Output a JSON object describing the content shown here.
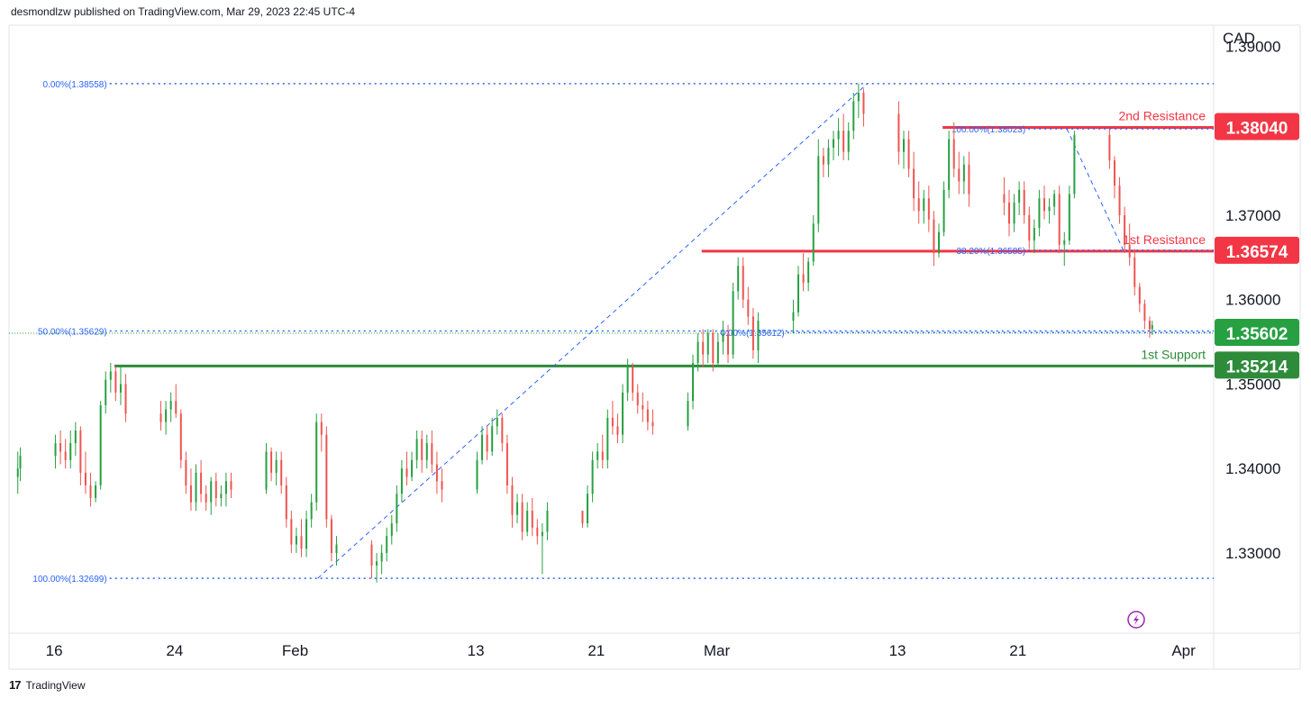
{
  "header": {
    "publisher": "desmondlzw published on TradingView.com, Mar 29, 2023 22:45 UTC-4"
  },
  "footer": {
    "brand": "TradingView"
  },
  "chart_data": {
    "type": "candlestick",
    "currency": "CAD",
    "ylim": [
      1.3205,
      1.3925
    ],
    "ytick_labels": [
      "1.39000",
      "1.37000",
      "1.36000",
      "1.35000",
      "1.34000",
      "1.33000"
    ],
    "ytick_values": [
      1.39,
      1.37,
      1.36,
      1.35,
      1.34,
      1.33
    ],
    "xtick_labels": [
      "16",
      "24",
      "Feb",
      "13",
      "21",
      "Mar",
      "13",
      "21",
      "Apr"
    ],
    "xtick_dates": [
      "2023-01-16",
      "2023-01-24",
      "2023-02-01",
      "2023-02-13",
      "2023-02-21",
      "2023-03-01",
      "2023-03-13",
      "2023-03-21",
      "2023-04-01"
    ],
    "colors": {
      "up": "#26a041",
      "down": "#ef5350",
      "resistance": "#f23645",
      "support": "#2e8b3a",
      "fib": "#2962ff"
    },
    "levels": [
      {
        "name": "2nd Resistance",
        "label": "2nd Resistance",
        "value": "1.38040",
        "price": 1.3804,
        "kind": "resistance",
        "start": "2023-03-16"
      },
      {
        "name": "1st Resistance",
        "label": "1st Resistance",
        "value": "1.36574",
        "price": 1.36574,
        "kind": "resistance",
        "start": "2023-02-28"
      },
      {
        "name": "current",
        "label": "",
        "value": "1.35602",
        "price": 1.35602,
        "kind": "current",
        "start": "2023-01-14"
      },
      {
        "name": "1st Support",
        "label": "1st Support",
        "value": "1.35214",
        "price": 1.35214,
        "kind": "support",
        "start": "2023-01-20"
      }
    ],
    "fib_lines": [
      {
        "label": "0.00%(1.38558)",
        "price": 1.38558,
        "start": "2023-01-14"
      },
      {
        "label": "50.00%(1.35629)",
        "price": 1.35629,
        "start": "2023-01-14"
      },
      {
        "label": "100.00%(1.32699)",
        "price": 1.32699,
        "start": "2023-01-14"
      },
      {
        "label": "100.00%(1.38023)",
        "price": 1.38023,
        "start": "2023-03-16"
      },
      {
        "label": "38.20%(1.36585)",
        "price": 1.36585,
        "start": "2023-03-16"
      },
      {
        "label": "0.00%(1.35612)",
        "price": 1.35612,
        "start": "2023-02-28"
      }
    ],
    "fib_diagonals": [
      {
        "from": [
          "2023-02-02 12:00",
          1.32699
        ],
        "to": [
          "2023-03-11 00:00",
          1.38558
        ]
      },
      {
        "from": [
          "2023-03-24 06:00",
          1.38023
        ],
        "to": [
          "2023-03-28 00:00",
          1.36585
        ]
      }
    ],
    "candles_4h": [
      [
        "2023-01-13 12:00",
        1.339,
        1.342,
        1.337,
        1.34
      ],
      [
        "2023-01-13 16:00",
        1.34,
        1.3425,
        1.3385,
        1.3415
      ],
      [
        "2023-01-16 00:00",
        1.3415,
        1.344,
        1.34,
        1.343
      ],
      [
        "2023-01-16 08:00",
        1.343,
        1.3445,
        1.3405,
        1.342
      ],
      [
        "2023-01-16 16:00",
        1.342,
        1.3435,
        1.34,
        1.341
      ],
      [
        "2023-01-17 00:00",
        1.341,
        1.3445,
        1.34,
        1.343
      ],
      [
        "2023-01-17 08:00",
        1.343,
        1.3455,
        1.3415,
        1.3445
      ],
      [
        "2023-01-17 16:00",
        1.3445,
        1.345,
        1.338,
        1.3395
      ],
      [
        "2023-01-18 00:00",
        1.3395,
        1.342,
        1.337,
        1.338
      ],
      [
        "2023-01-18 08:00",
        1.338,
        1.3395,
        1.3355,
        1.3365
      ],
      [
        "2023-01-18 16:00",
        1.3365,
        1.3385,
        1.336,
        1.338
      ],
      [
        "2023-01-19 00:00",
        1.338,
        1.348,
        1.3375,
        1.3475
      ],
      [
        "2023-01-19 08:00",
        1.3475,
        1.3515,
        1.3465,
        1.3505
      ],
      [
        "2023-01-19 16:00",
        1.3505,
        1.3525,
        1.349,
        1.3515
      ],
      [
        "2023-01-20 00:00",
        1.3515,
        1.3522,
        1.348,
        1.349
      ],
      [
        "2023-01-20 08:00",
        1.349,
        1.352,
        1.3475,
        1.35
      ],
      [
        "2023-01-20 16:00",
        1.35,
        1.3512,
        1.3455,
        1.3465
      ],
      [
        "2023-01-23 00:00",
        1.3465,
        1.348,
        1.3445,
        1.3455
      ],
      [
        "2023-01-23 08:00",
        1.3455,
        1.348,
        1.344,
        1.347
      ],
      [
        "2023-01-23 16:00",
        1.347,
        1.349,
        1.3455,
        1.348
      ],
      [
        "2023-01-24 00:00",
        1.348,
        1.35,
        1.346,
        1.3465
      ],
      [
        "2023-01-24 08:00",
        1.3465,
        1.347,
        1.34,
        1.341
      ],
      [
        "2023-01-24 16:00",
        1.341,
        1.342,
        1.337,
        1.338
      ],
      [
        "2023-01-25 00:00",
        1.338,
        1.34,
        1.335,
        1.336
      ],
      [
        "2023-01-25 08:00",
        1.336,
        1.3405,
        1.335,
        1.3395
      ],
      [
        "2023-01-25 16:00",
        1.3395,
        1.341,
        1.336,
        1.337
      ],
      [
        "2023-01-26 00:00",
        1.337,
        1.338,
        1.335,
        1.336
      ],
      [
        "2023-01-26 08:00",
        1.336,
        1.339,
        1.3345,
        1.3385
      ],
      [
        "2023-01-26 16:00",
        1.3385,
        1.3395,
        1.3355,
        1.3365
      ],
      [
        "2023-01-27 00:00",
        1.3365,
        1.338,
        1.3355,
        1.337
      ],
      [
        "2023-01-27 08:00",
        1.337,
        1.3395,
        1.3355,
        1.3385
      ],
      [
        "2023-01-27 16:00",
        1.3385,
        1.3395,
        1.3365,
        1.3375
      ],
      [
        "2023-01-30 00:00",
        1.3375,
        1.343,
        1.337,
        1.342
      ],
      [
        "2023-01-30 08:00",
        1.342,
        1.3425,
        1.3385,
        1.3395
      ],
      [
        "2023-01-30 16:00",
        1.3395,
        1.342,
        1.338,
        1.341
      ],
      [
        "2023-01-31 00:00",
        1.341,
        1.342,
        1.337,
        1.338
      ],
      [
        "2023-01-31 08:00",
        1.338,
        1.339,
        1.333,
        1.334
      ],
      [
        "2023-01-31 16:00",
        1.334,
        1.335,
        1.33,
        1.331
      ],
      [
        "2023-02-01 00:00",
        1.331,
        1.333,
        1.33,
        1.332
      ],
      [
        "2023-02-01 08:00",
        1.332,
        1.334,
        1.3295,
        1.3305
      ],
      [
        "2023-02-01 16:00",
        1.3305,
        1.335,
        1.3295,
        1.334
      ],
      [
        "2023-02-02 00:00",
        1.334,
        1.337,
        1.333,
        1.336
      ],
      [
        "2023-02-02 08:00",
        1.336,
        1.3465,
        1.335,
        1.3455
      ],
      [
        "2023-02-02 16:00",
        1.3455,
        1.3465,
        1.342,
        1.344
      ],
      [
        "2023-02-03 00:00",
        1.344,
        1.345,
        1.333,
        1.334
      ],
      [
        "2023-02-03 08:00",
        1.334,
        1.3345,
        1.329,
        1.33
      ],
      [
        "2023-02-03 16:00",
        1.33,
        1.332,
        1.3285,
        1.331
      ],
      [
        "2023-02-06 00:00",
        1.331,
        1.3315,
        1.327,
        1.3285
      ],
      [
        "2023-02-06 08:00",
        1.3285,
        1.33,
        1.3265,
        1.329
      ],
      [
        "2023-02-06 16:00",
        1.329,
        1.331,
        1.3275,
        1.33
      ],
      [
        "2023-02-07 00:00",
        1.33,
        1.333,
        1.329,
        1.332
      ],
      [
        "2023-02-07 08:00",
        1.332,
        1.3345,
        1.331,
        1.3335
      ],
      [
        "2023-02-07 16:00",
        1.3335,
        1.338,
        1.3325,
        1.337
      ],
      [
        "2023-02-08 00:00",
        1.337,
        1.341,
        1.336,
        1.34
      ],
      [
        "2023-02-08 08:00",
        1.34,
        1.342,
        1.338,
        1.339
      ],
      [
        "2023-02-08 16:00",
        1.339,
        1.342,
        1.3385,
        1.341
      ],
      [
        "2023-02-09 00:00",
        1.341,
        1.3445,
        1.34,
        1.3435
      ],
      [
        "2023-02-09 08:00",
        1.3435,
        1.3445,
        1.3395,
        1.341
      ],
      [
        "2023-02-09 16:00",
        1.341,
        1.344,
        1.34,
        1.343
      ],
      [
        "2023-02-10 00:00",
        1.343,
        1.3445,
        1.3395,
        1.3405
      ],
      [
        "2023-02-10 08:00",
        1.3405,
        1.342,
        1.337,
        1.3385
      ],
      [
        "2023-02-10 16:00",
        1.3385,
        1.34,
        1.336,
        1.3375
      ],
      [
        "2023-02-13 00:00",
        1.3375,
        1.342,
        1.337,
        1.341
      ],
      [
        "2023-02-13 08:00",
        1.341,
        1.345,
        1.3405,
        1.344
      ],
      [
        "2023-02-13 16:00",
        1.344,
        1.345,
        1.341,
        1.342
      ],
      [
        "2023-02-14 00:00",
        1.342,
        1.346,
        1.3415,
        1.345
      ],
      [
        "2023-02-14 08:00",
        1.345,
        1.347,
        1.344,
        1.346
      ],
      [
        "2023-02-14 16:00",
        1.346,
        1.3465,
        1.342,
        1.343
      ],
      [
        "2023-02-15 00:00",
        1.343,
        1.344,
        1.337,
        1.338
      ],
      [
        "2023-02-15 08:00",
        1.338,
        1.339,
        1.333,
        1.3345
      ],
      [
        "2023-02-15 16:00",
        1.3345,
        1.337,
        1.3335,
        1.336
      ],
      [
        "2023-02-16 00:00",
        1.336,
        1.337,
        1.3315,
        1.3325
      ],
      [
        "2023-02-16 08:00",
        1.3325,
        1.336,
        1.332,
        1.335
      ],
      [
        "2023-02-16 16:00",
        1.335,
        1.3365,
        1.332,
        1.333
      ],
      [
        "2023-02-17 00:00",
        1.333,
        1.334,
        1.331,
        1.332
      ],
      [
        "2023-02-17 08:00",
        1.332,
        1.3335,
        1.3275,
        1.3325
      ],
      [
        "2023-02-17 16:00",
        1.3325,
        1.336,
        1.3315,
        1.335
      ],
      [
        "2023-02-20 00:00",
        1.335,
        1.3345,
        1.333,
        1.3335
      ],
      [
        "2023-02-20 08:00",
        1.3335,
        1.338,
        1.333,
        1.337
      ],
      [
        "2023-02-20 16:00",
        1.337,
        1.342,
        1.336,
        1.341
      ],
      [
        "2023-02-21 00:00",
        1.341,
        1.343,
        1.34,
        1.342
      ],
      [
        "2023-02-21 08:00",
        1.342,
        1.344,
        1.34,
        1.341
      ],
      [
        "2023-02-21 16:00",
        1.341,
        1.347,
        1.34,
        1.346
      ],
      [
        "2023-02-22 00:00",
        1.346,
        1.348,
        1.344,
        1.345
      ],
      [
        "2023-02-22 08:00",
        1.345,
        1.3465,
        1.343,
        1.344
      ],
      [
        "2023-02-22 16:00",
        1.344,
        1.35,
        1.343,
        1.349
      ],
      [
        "2023-02-23 00:00",
        1.349,
        1.353,
        1.348,
        1.352
      ],
      [
        "2023-02-23 08:00",
        1.352,
        1.3525,
        1.348,
        1.349
      ],
      [
        "2023-02-23 16:00",
        1.349,
        1.35,
        1.3465,
        1.3475
      ],
      [
        "2023-02-24 00:00",
        1.3475,
        1.349,
        1.3455,
        1.347
      ],
      [
        "2023-02-24 08:00",
        1.347,
        1.348,
        1.3445,
        1.3455
      ],
      [
        "2023-02-24 16:00",
        1.3455,
        1.347,
        1.344,
        1.345
      ],
      [
        "2023-02-27 00:00",
        1.345,
        1.349,
        1.3445,
        1.348
      ],
      [
        "2023-02-27 08:00",
        1.348,
        1.3535,
        1.347,
        1.3525
      ],
      [
        "2023-02-27 16:00",
        1.3525,
        1.356,
        1.3515,
        1.355
      ],
      [
        "2023-02-28 00:00",
        1.355,
        1.3565,
        1.352,
        1.3535
      ],
      [
        "2023-02-28 08:00",
        1.3535,
        1.3565,
        1.3525,
        1.356
      ],
      [
        "2023-02-28 16:00",
        1.356,
        1.3565,
        1.3515,
        1.3525
      ],
      [
        "2023-03-01 00:00",
        1.3525,
        1.356,
        1.352,
        1.355
      ],
      [
        "2023-03-01 08:00",
        1.355,
        1.3575,
        1.3535,
        1.356
      ],
      [
        "2023-03-01 16:00",
        1.356,
        1.357,
        1.3525,
        1.3535
      ],
      [
        "2023-03-02 00:00",
        1.3535,
        1.362,
        1.353,
        1.361
      ],
      [
        "2023-03-02 08:00",
        1.361,
        1.365,
        1.36,
        1.364
      ],
      [
        "2023-03-02 16:00",
        1.364,
        1.365,
        1.359,
        1.36
      ],
      [
        "2023-03-03 00:00",
        1.36,
        1.3615,
        1.357,
        1.358
      ],
      [
        "2023-03-03 08:00",
        1.358,
        1.359,
        1.353,
        1.354
      ],
      [
        "2023-03-03 16:00",
        1.354,
        1.3585,
        1.3525,
        1.3575
      ],
      [
        "2023-03-06 00:00",
        1.3575,
        1.36,
        1.356,
        1.3585
      ],
      [
        "2023-03-06 08:00",
        1.3585,
        1.364,
        1.358,
        1.363
      ],
      [
        "2023-03-06 16:00",
        1.363,
        1.3655,
        1.361,
        1.362
      ],
      [
        "2023-03-07 00:00",
        1.362,
        1.365,
        1.361,
        1.3645
      ],
      [
        "2023-03-07 08:00",
        1.3645,
        1.37,
        1.364,
        1.369
      ],
      [
        "2023-03-07 16:00",
        1.369,
        1.379,
        1.368,
        1.377
      ],
      [
        "2023-03-08 00:00",
        1.377,
        1.378,
        1.3745,
        1.376
      ],
      [
        "2023-03-08 08:00",
        1.376,
        1.379,
        1.3745,
        1.378
      ],
      [
        "2023-03-08 16:00",
        1.378,
        1.38,
        1.3765,
        1.379
      ],
      [
        "2023-03-09 00:00",
        1.379,
        1.3815,
        1.377,
        1.38
      ],
      [
        "2023-03-09 08:00",
        1.38,
        1.382,
        1.3765,
        1.3775
      ],
      [
        "2023-03-09 16:00",
        1.3775,
        1.381,
        1.3765,
        1.38
      ],
      [
        "2023-03-10 00:00",
        1.38,
        1.3845,
        1.379,
        1.3835
      ],
      [
        "2023-03-10 08:00",
        1.3835,
        1.3856,
        1.3815,
        1.3845
      ],
      [
        "2023-03-10 16:00",
        1.3845,
        1.385,
        1.3805,
        1.382
      ],
      [
        "2023-03-13 00:00",
        1.382,
        1.3835,
        1.376,
        1.3775
      ],
      [
        "2023-03-13 08:00",
        1.3775,
        1.38,
        1.3755,
        1.379
      ],
      [
        "2023-03-13 16:00",
        1.379,
        1.38,
        1.3745,
        1.3755
      ],
      [
        "2023-03-14 00:00",
        1.3755,
        1.3775,
        1.3705,
        1.372
      ],
      [
        "2023-03-14 08:00",
        1.372,
        1.374,
        1.369,
        1.3705
      ],
      [
        "2023-03-14 16:00",
        1.3705,
        1.373,
        1.369,
        1.372
      ],
      [
        "2023-03-15 00:00",
        1.372,
        1.3735,
        1.368,
        1.3695
      ],
      [
        "2023-03-15 08:00",
        1.3695,
        1.3705,
        1.364,
        1.3655
      ],
      [
        "2023-03-15 16:00",
        1.3655,
        1.369,
        1.365,
        1.368
      ],
      [
        "2023-03-16 00:00",
        1.368,
        1.374,
        1.3675,
        1.373
      ],
      [
        "2023-03-16 08:00",
        1.373,
        1.38,
        1.372,
        1.379
      ],
      [
        "2023-03-16 16:00",
        1.379,
        1.381,
        1.3745,
        1.3755
      ],
      [
        "2023-03-17 00:00",
        1.3755,
        1.3775,
        1.3725,
        1.374
      ],
      [
        "2023-03-17 08:00",
        1.374,
        1.377,
        1.3725,
        1.376
      ],
      [
        "2023-03-17 16:00",
        1.376,
        1.3775,
        1.371,
        1.3725
      ],
      [
        "2023-03-20 00:00",
        1.3725,
        1.3745,
        1.37,
        1.3715
      ],
      [
        "2023-03-20 08:00",
        1.3715,
        1.373,
        1.3675,
        1.369
      ],
      [
        "2023-03-20 16:00",
        1.369,
        1.3725,
        1.368,
        1.3715
      ],
      [
        "2023-03-21 00:00",
        1.3715,
        1.374,
        1.37,
        1.373
      ],
      [
        "2023-03-21 08:00",
        1.373,
        1.374,
        1.369,
        1.37
      ],
      [
        "2023-03-21 16:00",
        1.37,
        1.371,
        1.366,
        1.367
      ],
      [
        "2023-03-22 00:00",
        1.367,
        1.3695,
        1.3655,
        1.3685
      ],
      [
        "2023-03-22 08:00",
        1.3685,
        1.373,
        1.3675,
        1.372
      ],
      [
        "2023-03-22 16:00",
        1.372,
        1.3735,
        1.3695,
        1.3705
      ],
      [
        "2023-03-23 00:00",
        1.3705,
        1.372,
        1.369,
        1.371
      ],
      [
        "2023-03-23 08:00",
        1.371,
        1.373,
        1.37,
        1.3725
      ],
      [
        "2023-03-23 16:00",
        1.3725,
        1.3735,
        1.3655,
        1.3665
      ],
      [
        "2023-03-24 00:00",
        1.3665,
        1.368,
        1.364,
        1.367
      ],
      [
        "2023-03-24 08:00",
        1.367,
        1.3735,
        1.3665,
        1.3725
      ],
      [
        "2023-03-24 16:00",
        1.3725,
        1.38,
        1.372,
        1.3795
      ],
      [
        "2023-03-27 00:00",
        1.3795,
        1.3802,
        1.3755,
        1.3765
      ],
      [
        "2023-03-27 08:00",
        1.3765,
        1.377,
        1.372,
        1.3735
      ],
      [
        "2023-03-27 16:00",
        1.3735,
        1.3745,
        1.369,
        1.37
      ],
      [
        "2023-03-28 00:00",
        1.37,
        1.371,
        1.3655,
        1.3665
      ],
      [
        "2023-03-28 08:00",
        1.3665,
        1.369,
        1.364,
        1.365
      ],
      [
        "2023-03-28 16:00",
        1.365,
        1.366,
        1.3605,
        1.3615
      ],
      [
        "2023-03-29 00:00",
        1.3615,
        1.362,
        1.3585,
        1.3595
      ],
      [
        "2023-03-29 08:00",
        1.3595,
        1.36,
        1.3565,
        1.3575
      ],
      [
        "2023-03-29 16:00",
        1.3575,
        1.358,
        1.3555,
        1.3565
      ],
      [
        "2023-03-29 20:00",
        1.3565,
        1.3575,
        1.3558,
        1.357
      ]
    ]
  }
}
